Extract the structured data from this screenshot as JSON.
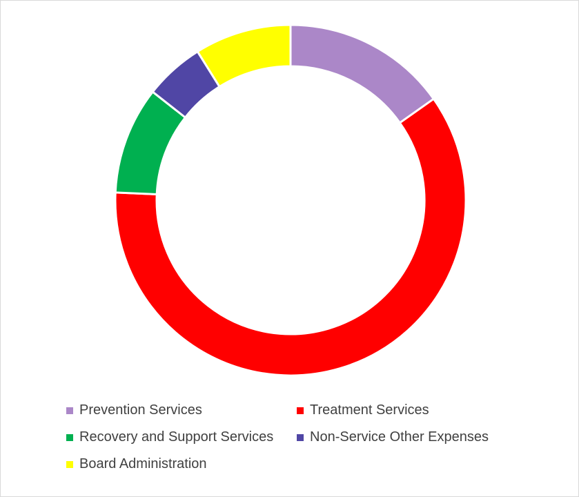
{
  "chart_data": {
    "type": "pie",
    "subtype": "donut",
    "title": "",
    "categories": [
      "Prevention Services",
      "Treatment Services",
      "Recovery and Support Services",
      "Non-Service Other Expenses",
      "Board Administration"
    ],
    "values": [
      15.2,
      60.5,
      9.9,
      5.5,
      8.9
    ],
    "colors": [
      "#ab87c8",
      "#ff0000",
      "#00b050",
      "#5046a5",
      "#ffff00"
    ],
    "start_angle_deg": 0,
    "direction": "clockwise",
    "legend_position": "bottom"
  }
}
